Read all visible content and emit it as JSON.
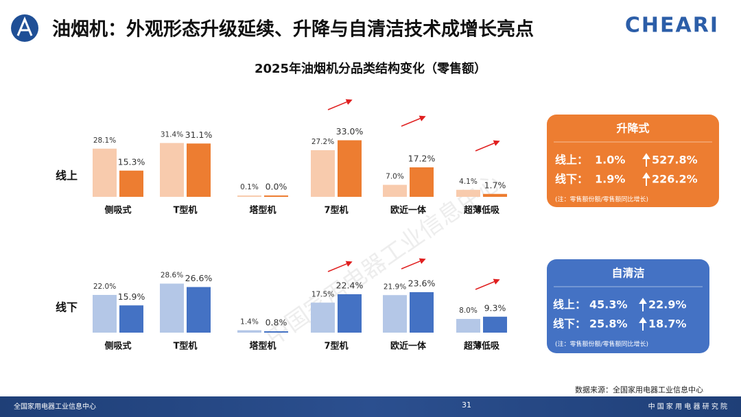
{
  "header": {
    "title": "油烟机：外观形态升级延续、升降与自清洁技术成增长亮点",
    "logo": "CHEARI"
  },
  "subtitle": "2025年油烟机分品类结构变化（零售额）",
  "chart_data": [
    {
      "type": "bar",
      "row_label": "线上",
      "categories": [
        "侧吸式",
        "T型机",
        "塔型机",
        "7型机",
        "欧近一体",
        "超薄低吸"
      ],
      "series": [
        {
          "color": "#F8CBAD",
          "values": [
            28.1,
            31.4,
            0.1,
            27.2,
            7.0,
            4.1
          ],
          "value_labels": [
            "28.1%",
            "31.4%",
            "0.1%",
            "27.2%",
            "7.0%",
            "4.1%"
          ]
        },
        {
          "color": "#ED7D31",
          "values": [
            15.3,
            31.1,
            0.0,
            33.0,
            17.2,
            1.7
          ],
          "value_labels": [
            "15.3%",
            "31.1%",
            "0.0%",
            "33.0%",
            "17.2%",
            "1.7%"
          ]
        }
      ]
    },
    {
      "type": "bar",
      "row_label": "线下",
      "categories": [
        "侧吸式",
        "T型机",
        "塔型机",
        "7型机",
        "欧近一体",
        "超薄低吸"
      ],
      "series": [
        {
          "color": "#B4C7E7",
          "values": [
            22.0,
            28.6,
            1.4,
            17.5,
            21.9,
            8.0
          ],
          "value_labels": [
            "22.0%",
            "28.6%",
            "1.4%",
            "17.5%",
            "21.9%",
            "8.0%"
          ]
        },
        {
          "color": "#4472C4",
          "values": [
            15.9,
            26.6,
            0.8,
            22.4,
            23.6,
            9.3
          ],
          "value_labels": [
            "15.9%",
            "26.6%",
            "0.8%",
            "22.4%",
            "23.6%",
            "9.3%"
          ]
        }
      ]
    }
  ],
  "boxes": [
    {
      "title": "升降式",
      "rows": [
        [
          "线上：",
          "1.0%",
          "527.8%"
        ],
        [
          "线下：",
          "1.9%",
          "226.2%"
        ]
      ],
      "note": "(注：零售额份额/零售额同比增长)"
    },
    {
      "title": "自清洁",
      "rows": [
        [
          "线上：",
          "45.3%",
          "22.9%"
        ],
        [
          "线下：",
          "25.8%",
          "18.7%"
        ]
      ],
      "note": "(注：零售额份额/零售额同比增长)"
    }
  ],
  "watermark": "中国家用电器工业信息中心",
  "source": "数据来源：全国家用电器工业信息中心",
  "footer": {
    "left": "全国家用电器工业信息中心",
    "page": "31",
    "right": "中 国 家 用 电 器 研 究 院"
  }
}
